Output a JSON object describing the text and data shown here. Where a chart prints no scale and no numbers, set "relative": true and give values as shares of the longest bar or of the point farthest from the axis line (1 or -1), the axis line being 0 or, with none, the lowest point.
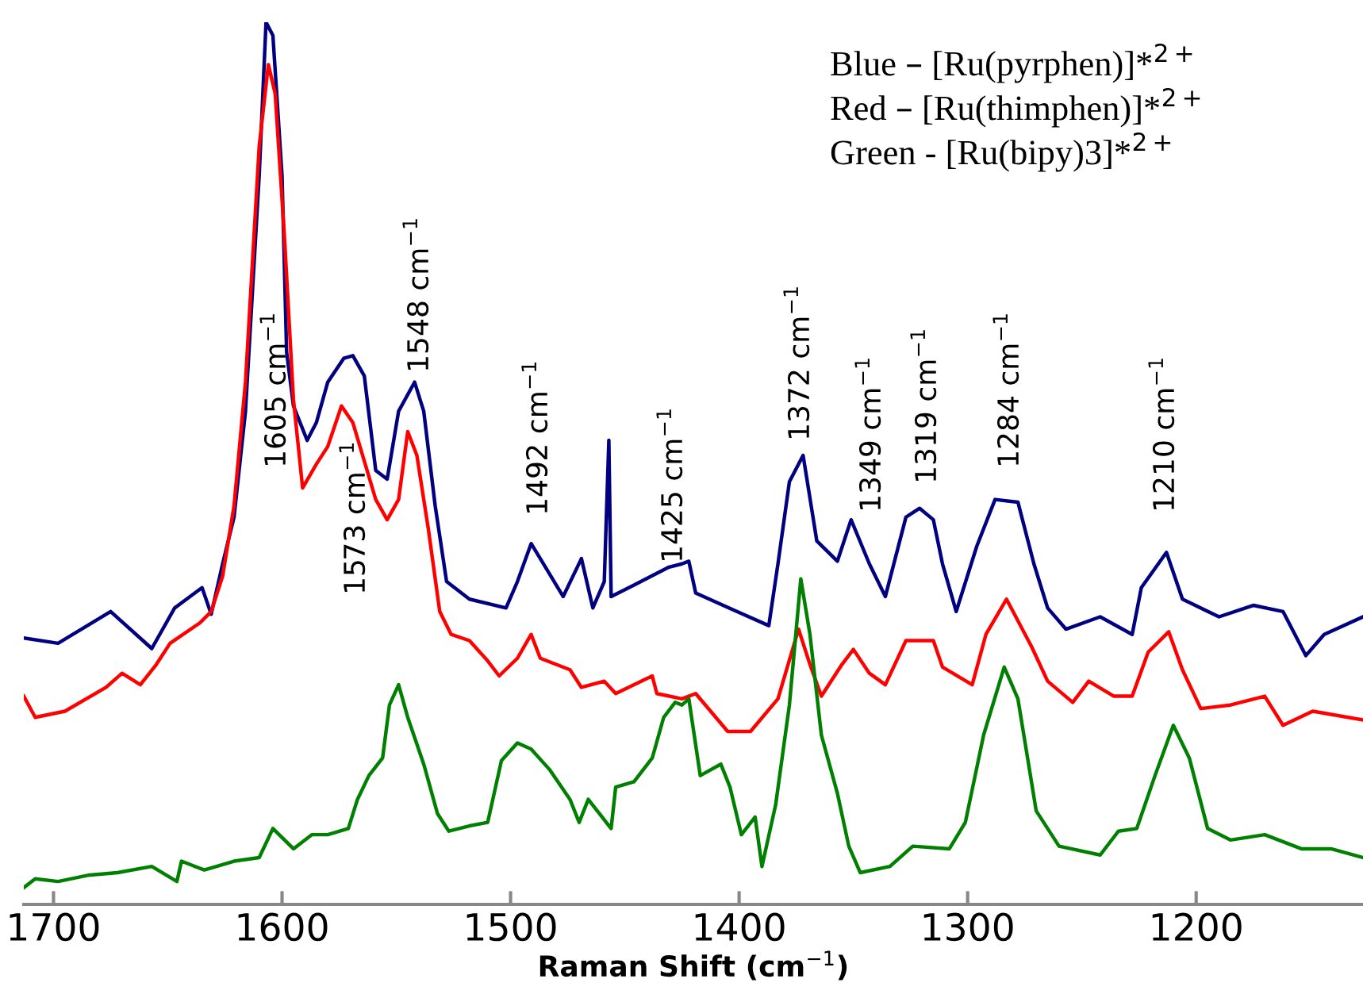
{
  "chart_data": {
    "type": "line",
    "relative": true,
    "xlabel": "Raman Shift (cm$^{−1}$)",
    "xlim": [
      1713,
      1127
    ],
    "xticks": [
      1700,
      1600,
      1500,
      1400,
      1300,
      1200
    ],
    "grid": false,
    "tick_labels": "x",
    "marker": "none",
    "line_style": "solid",
    "series": [
      {
        "color": "#000080",
        "x": [
          1713,
          1698,
          1675,
          1657,
          1647,
          1635,
          1631,
          1626,
          1621,
          1616,
          1610,
          1607,
          1604,
          1600,
          1598,
          1595,
          1589,
          1585,
          1580,
          1573,
          1569,
          1564,
          1559,
          1554,
          1549,
          1542,
          1538,
          1533,
          1528,
          1518,
          1502,
          1497,
          1491,
          1487,
          1477,
          1469,
          1464,
          1459,
          1457,
          1456,
          1446,
          1431,
          1425,
          1422,
          1419,
          1401,
          1387,
          1383,
          1378,
          1372,
          1366,
          1357,
          1351,
          1343,
          1336,
          1327,
          1321,
          1315,
          1311,
          1305,
          1296,
          1288,
          1278,
          1271,
          1265,
          1257,
          1242,
          1228,
          1224,
          1213,
          1206,
          1190,
          1175,
          1162,
          1152,
          1144,
          1127
        ],
        "values": [
          0.302,
          0.296,
          0.332,
          0.29,
          0.336,
          0.359,
          0.329,
          0.386,
          0.439,
          0.559,
          0.826,
          1.0,
          0.985,
          0.826,
          0.626,
          0.565,
          0.526,
          0.546,
          0.592,
          0.619,
          0.622,
          0.599,
          0.492,
          0.482,
          0.559,
          0.592,
          0.559,
          0.452,
          0.366,
          0.346,
          0.336,
          0.366,
          0.409,
          0.392,
          0.349,
          0.392,
          0.336,
          0.366,
          0.526,
          0.349,
          0.362,
          0.382,
          0.386,
          0.389,
          0.353,
          0.332,
          0.316,
          0.386,
          0.479,
          0.509,
          0.412,
          0.389,
          0.436,
          0.386,
          0.349,
          0.439,
          0.449,
          0.436,
          0.386,
          0.332,
          0.406,
          0.459,
          0.456,
          0.386,
          0.336,
          0.312,
          0.326,
          0.306,
          0.359,
          0.399,
          0.346,
          0.326,
          0.339,
          0.332,
          0.282,
          0.306,
          0.326
        ]
      },
      {
        "color": "#ff0000",
        "x": [
          1713,
          1708,
          1695,
          1677,
          1670,
          1662,
          1655,
          1649,
          1636,
          1631,
          1626,
          1621,
          1616,
          1610,
          1606,
          1603,
          1599,
          1595,
          1591,
          1585,
          1580,
          1574,
          1569,
          1559,
          1554,
          1549,
          1545,
          1541,
          1536,
          1531,
          1526,
          1518,
          1510,
          1505,
          1497,
          1491,
          1487,
          1474,
          1469,
          1459,
          1454,
          1438,
          1436,
          1425,
          1419,
          1405,
          1395,
          1383,
          1374,
          1369,
          1364,
          1355,
          1350,
          1343,
          1336,
          1327,
          1315,
          1311,
          1298,
          1292,
          1283,
          1272,
          1265,
          1254,
          1247,
          1236,
          1228,
          1221,
          1212,
          1206,
          1198,
          1185,
          1170,
          1162,
          1149,
          1127
        ],
        "values": [
          0.236,
          0.212,
          0.219,
          0.246,
          0.262,
          0.249,
          0.272,
          0.296,
          0.319,
          0.332,
          0.372,
          0.452,
          0.592,
          0.859,
          0.952,
          0.919,
          0.759,
          0.572,
          0.472,
          0.499,
          0.519,
          0.565,
          0.546,
          0.459,
          0.436,
          0.459,
          0.536,
          0.509,
          0.426,
          0.332,
          0.306,
          0.299,
          0.276,
          0.259,
          0.279,
          0.306,
          0.279,
          0.266,
          0.246,
          0.253,
          0.239,
          0.259,
          0.239,
          0.233,
          0.239,
          0.196,
          0.196,
          0.233,
          0.312,
          0.272,
          0.236,
          0.272,
          0.289,
          0.262,
          0.249,
          0.299,
          0.299,
          0.269,
          0.249,
          0.306,
          0.346,
          0.292,
          0.253,
          0.229,
          0.253,
          0.236,
          0.236,
          0.286,
          0.309,
          0.266,
          0.222,
          0.226,
          0.236,
          0.203,
          0.219,
          0.209
        ]
      },
      {
        "color": "#008000",
        "x": [
          1713,
          1708,
          1698,
          1685,
          1672,
          1657,
          1646,
          1644,
          1634,
          1621,
          1610,
          1604,
          1595,
          1587,
          1580,
          1571,
          1567,
          1562,
          1556,
          1553,
          1549,
          1545,
          1538,
          1532,
          1527,
          1518,
          1510,
          1504,
          1497,
          1491,
          1483,
          1474,
          1470,
          1466,
          1456,
          1454,
          1446,
          1438,
          1433,
          1428,
          1425,
          1422,
          1417,
          1408,
          1404,
          1399,
          1393,
          1390,
          1384,
          1378,
          1373,
          1369,
          1364,
          1357,
          1352,
          1347,
          1334,
          1324,
          1308,
          1301,
          1293,
          1284,
          1278,
          1270,
          1260,
          1242,
          1234,
          1226,
          1218,
          1210,
          1203,
          1195,
          1185,
          1170,
          1154,
          1141,
          1127
        ],
        "values": [
          0.019,
          0.029,
          0.026,
          0.033,
          0.036,
          0.043,
          0.026,
          0.049,
          0.039,
          0.049,
          0.053,
          0.086,
          0.063,
          0.079,
          0.079,
          0.086,
          0.119,
          0.146,
          0.166,
          0.226,
          0.249,
          0.212,
          0.159,
          0.103,
          0.083,
          0.089,
          0.093,
          0.163,
          0.183,
          0.176,
          0.153,
          0.119,
          0.093,
          0.119,
          0.086,
          0.133,
          0.139,
          0.166,
          0.212,
          0.229,
          0.226,
          0.233,
          0.146,
          0.159,
          0.133,
          0.079,
          0.099,
          0.043,
          0.113,
          0.226,
          0.369,
          0.306,
          0.192,
          0.126,
          0.066,
          0.036,
          0.043,
          0.066,
          0.063,
          0.093,
          0.192,
          0.269,
          0.233,
          0.106,
          0.066,
          0.056,
          0.083,
          0.086,
          0.146,
          0.203,
          0.166,
          0.086,
          0.073,
          0.079,
          0.063,
          0.063,
          0.053
        ]
      }
    ],
    "annotations": [
      "1605 cm$^{−1}$",
      "1573 cm$^{−1}$",
      "1548 cm$^{−1}$",
      "1492 cm$^{−1}$",
      "1425 cm$^{−1}$",
      "1372 cm$^{−1}$",
      "1349 cm$^{−1}$",
      "1319 cm$^{−1}$",
      "1284 cm$^{−1}$",
      "1210 cm$^{−1}$",
      "Blue – [Ru(pyrphen)]*$^{2+}$",
      "Red – [Ru(thimphen)]*$^{2+}$",
      "Green - [Ru(bipy)3]*$^{2+}$"
    ]
  }
}
